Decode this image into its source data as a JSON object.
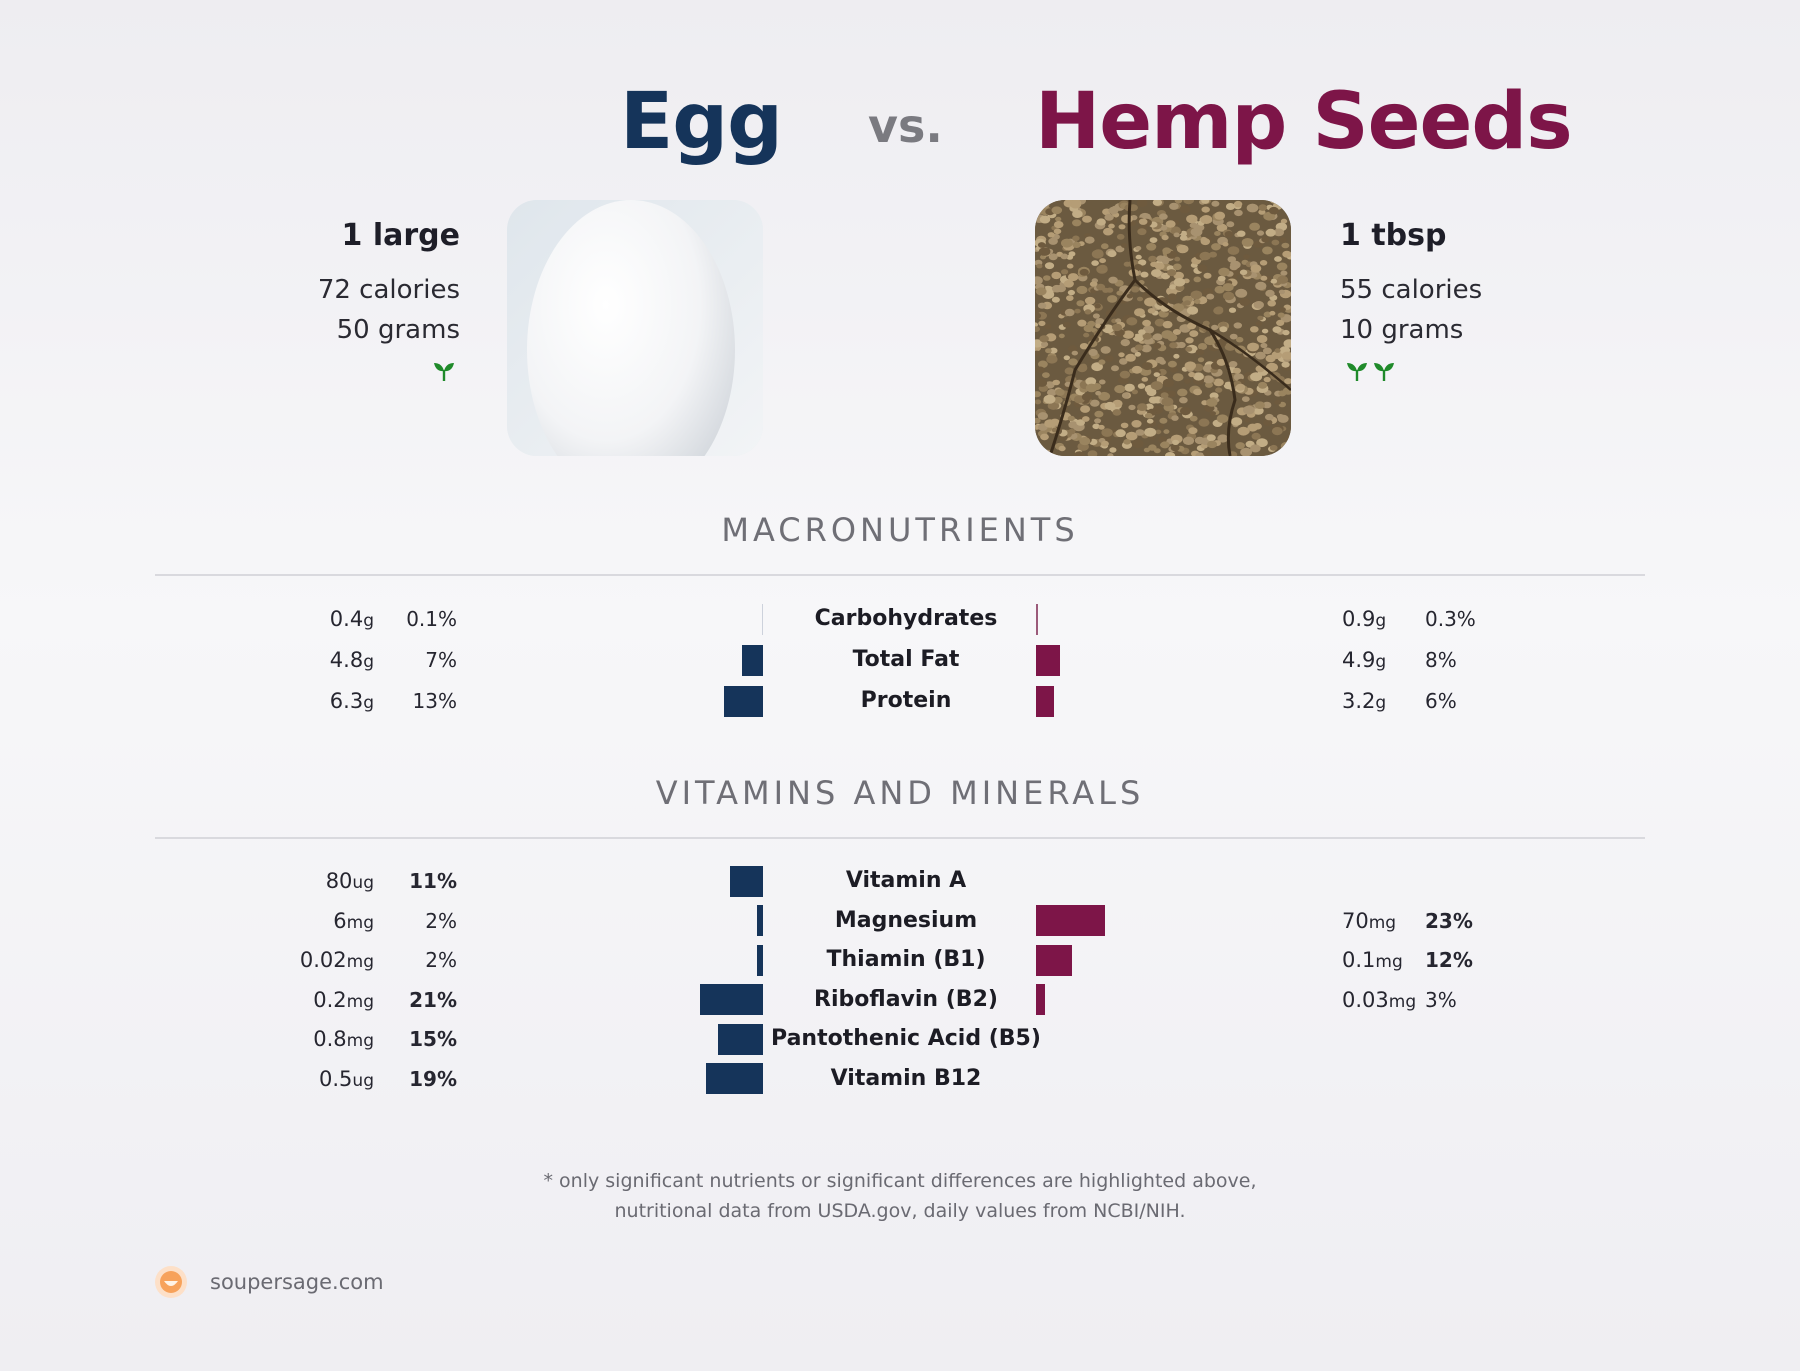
{
  "header": {
    "food_a": "Egg",
    "vs": "vs.",
    "food_b": "Hemp Seeds"
  },
  "food_a": {
    "serving": "1 large",
    "calories": "72 calories",
    "grams": "50 grams",
    "sprout_count": 1,
    "image_icon": "egg-photo"
  },
  "food_b": {
    "serving": "1 tbsp",
    "calories": "55 calories",
    "grams": "10 grams",
    "sprout_count": 2,
    "image_icon": "hemp-seeds-photo"
  },
  "sections": {
    "macros_title": "MACRONUTRIENTS",
    "vitamins_title": "VITAMINS AND MINERALS"
  },
  "colors": {
    "food_a": "#15345a",
    "food_b": "#7d1548",
    "sprout": "#1f8a2a"
  },
  "chart_data": [
    {
      "type": "bar",
      "title": "MACRONUTRIENTS",
      "categories": [
        "Carbohydrates",
        "Total Fat",
        "Protein"
      ],
      "series": [
        {
          "name": "Egg",
          "amounts": [
            "0.4",
            "4.8",
            "6.3"
          ],
          "units": [
            "g",
            "g",
            "g"
          ],
          "percent_labels": [
            "0.1%",
            "7%",
            "13%"
          ],
          "values": [
            0.1,
            7,
            13
          ],
          "bold": [
            false,
            false,
            false
          ]
        },
        {
          "name": "Hemp Seeds",
          "amounts": [
            "0.9",
            "4.9",
            "3.2"
          ],
          "units": [
            "g",
            "g",
            "g"
          ],
          "percent_labels": [
            "0.3%",
            "8%",
            "6%"
          ],
          "values": [
            0.3,
            8,
            6
          ],
          "bold": [
            false,
            false,
            false
          ]
        }
      ]
    },
    {
      "type": "bar",
      "title": "VITAMINS AND MINERALS",
      "categories": [
        "Vitamin A",
        "Magnesium",
        "Thiamin (B1)",
        "Riboflavin (B2)",
        "Pantothenic Acid (B5)",
        "Vitamin B12"
      ],
      "series": [
        {
          "name": "Egg",
          "amounts": [
            "80",
            "6",
            "0.02",
            "0.2",
            "0.8",
            "0.5"
          ],
          "units": [
            "ug",
            "mg",
            "mg",
            "mg",
            "mg",
            "ug"
          ],
          "percent_labels": [
            "11%",
            "2%",
            "2%",
            "21%",
            "15%",
            "19%"
          ],
          "values": [
            11,
            2,
            2,
            21,
            15,
            19
          ],
          "bold": [
            true,
            false,
            false,
            true,
            true,
            true
          ]
        },
        {
          "name": "Hemp Seeds",
          "amounts": [
            "",
            "70",
            "0.1",
            "0.03",
            "",
            ""
          ],
          "units": [
            "",
            "mg",
            "mg",
            "mg",
            "",
            ""
          ],
          "percent_labels": [
            "",
            "23%",
            "12%",
            "3%",
            "",
            ""
          ],
          "values": [
            null,
            23,
            12,
            3,
            null,
            null
          ],
          "bold": [
            false,
            true,
            true,
            false,
            false,
            false
          ]
        }
      ]
    }
  ],
  "footer": {
    "note_line1": "* only significant nutrients or significant differences are highlighted above,",
    "note_line2": "nutritional data from USDA.gov, daily values from NCBI/NIH.",
    "site": "soupersage.com"
  }
}
